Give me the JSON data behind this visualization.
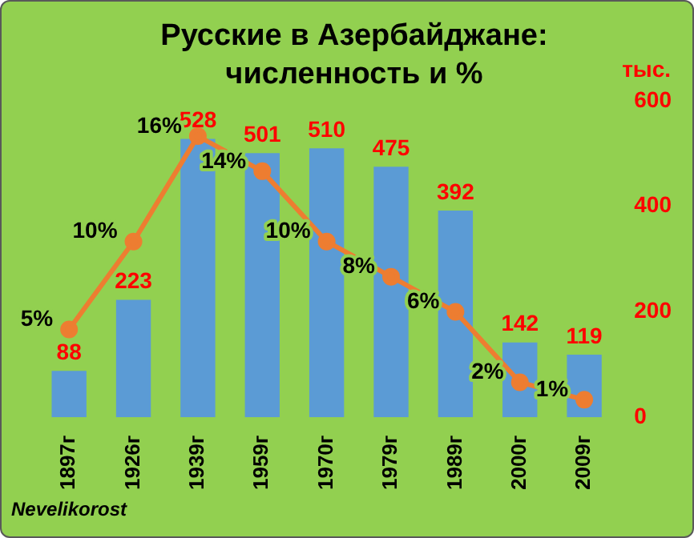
{
  "chart_data": {
    "type": "bar",
    "title": "Русские в Азербайджане: численность и %",
    "y2label": "тыс.",
    "categories": [
      "1897г",
      "1926г",
      "1939г",
      "1959г",
      "1970г",
      "1979г",
      "1989г",
      "2000г",
      "2009г"
    ],
    "series": [
      {
        "axis": "y2",
        "color": "#5b9bd5",
        "values": [
          88,
          223,
          528,
          501,
          510,
          475,
          392,
          142,
          119
        ],
        "value_labels": [
          "88",
          "223",
          "528",
          "501",
          "510",
          "475",
          "392",
          "142",
          "119"
        ]
      },
      {
        "type": "line",
        "axis": "y",
        "color": "#ed7d31",
        "values": [
          5,
          10,
          16,
          14,
          10,
          8,
          6,
          2,
          1
        ],
        "value_labels": [
          "5%",
          "10%",
          "16%",
          "14%",
          "10%",
          "8%",
          "6%",
          "2%",
          "1%"
        ]
      }
    ],
    "y2lim": [
      0,
      600
    ],
    "y2ticks": [
      0,
      200,
      400,
      600
    ],
    "grid": false,
    "legend": false,
    "marker": "circle",
    "line_style": "solid",
    "annotations": [
      "Nevelikorost"
    ]
  }
}
